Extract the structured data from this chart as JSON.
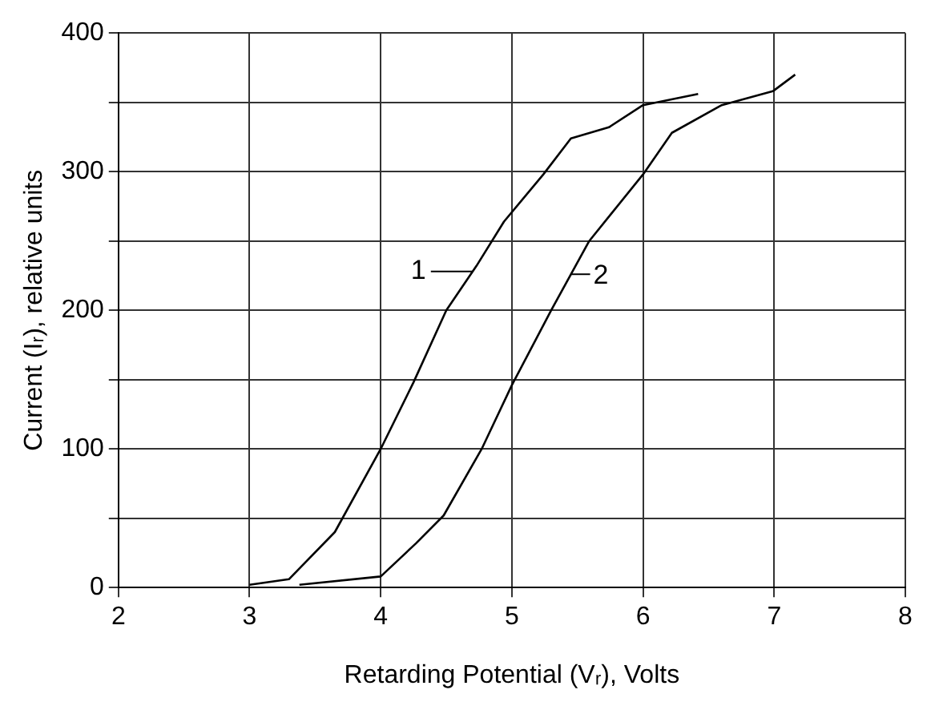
{
  "chart_data": {
    "type": "line",
    "xlabel": "Retarding Potential (Vᵣ), Volts",
    "ylabel": "Current (Iᵣ), relative units",
    "series": [
      {
        "color": "#000000",
        "x": [
          3,
          3.3,
          3.65,
          4,
          4.25,
          4.5,
          4.73,
          4.94,
          5.24,
          5.45,
          5.74,
          6,
          6.42
        ],
        "values": [
          2,
          6,
          40,
          100,
          148,
          200,
          232,
          264,
          298,
          324,
          332,
          348,
          356
        ]
      },
      {
        "color": "#000000",
        "x": [
          3.38,
          4,
          4.27,
          4.48,
          4.77,
          5,
          5.3,
          5.59,
          6,
          6.22,
          6.6,
          6.99,
          7.16
        ],
        "values": [
          2,
          8,
          32,
          52,
          100,
          146,
          200,
          250,
          298,
          328,
          348,
          358,
          370
        ]
      }
    ],
    "annotations": [
      {
        "text": "1",
        "x": 4.7,
        "y": 228
      },
      {
        "text": "2",
        "x": 5.45,
        "y": 226
      }
    ],
    "xlim": [
      2,
      8
    ],
    "xticks": [
      2,
      3,
      4,
      5,
      6,
      7,
      8
    ],
    "ylim": [
      0,
      400
    ],
    "yticks": [
      0,
      {
        "value": 50,
        "label": null
      },
      100,
      {
        "value": 150,
        "label": null
      },
      200,
      {
        "value": 250,
        "label": null
      },
      300,
      {
        "value": 350,
        "label": null
      },
      400
    ],
    "grid": true,
    "legend": false,
    "marker": "none",
    "line_style": "solid"
  }
}
